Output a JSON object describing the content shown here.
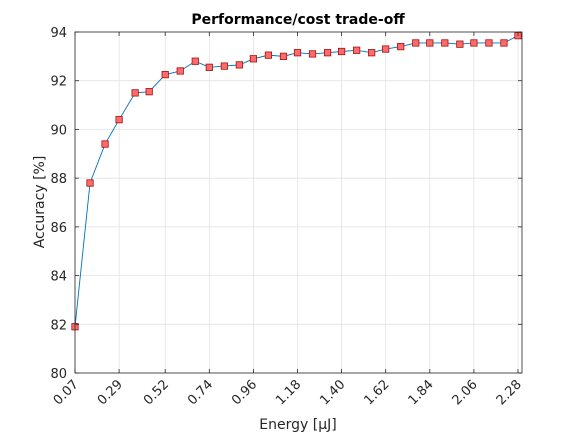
{
  "chart_data": {
    "type": "line",
    "title": "Performance/cost trade-off",
    "xlabel": "Energy [μJ]",
    "ylabel": "Accuracy [%]",
    "xlim": [
      0.07,
      2.3
    ],
    "ylim": [
      80,
      94
    ],
    "xticks": [
      0.07,
      0.29,
      0.52,
      0.74,
      0.96,
      1.18,
      1.4,
      1.62,
      1.84,
      2.06,
      2.28
    ],
    "xtick_labels": [
      "0.07",
      "0.29",
      "0.52",
      "0.74",
      "0.96",
      "1.18",
      "1.40",
      "1.62",
      "1.84",
      "2.06",
      "2.28"
    ],
    "yticks": [
      80,
      82,
      84,
      86,
      88,
      90,
      92,
      94
    ],
    "ytick_labels": [
      "80",
      "82",
      "84",
      "86",
      "88",
      "90",
      "92",
      "94"
    ],
    "grid": true,
    "line_color": "#0072bd",
    "marker_fill": "#ff6b6b",
    "marker_edge": "#a01010",
    "marker": "square",
    "series": [
      {
        "x": [
          0.07,
          0.145,
          0.22,
          0.29,
          0.37,
          0.44,
          0.52,
          0.595,
          0.67,
          0.74,
          0.815,
          0.89,
          0.96,
          1.035,
          1.11,
          1.18,
          1.255,
          1.33,
          1.4,
          1.475,
          1.55,
          1.62,
          1.695,
          1.77,
          1.84,
          1.915,
          1.99,
          2.06,
          2.135,
          2.21,
          2.28
        ],
        "y": [
          81.9,
          87.8,
          89.4,
          90.4,
          91.5,
          91.55,
          92.25,
          92.4,
          92.8,
          92.55,
          92.6,
          92.65,
          92.9,
          93.05,
          93.0,
          93.15,
          93.1,
          93.15,
          93.2,
          93.25,
          93.15,
          93.3,
          93.4,
          93.55,
          93.55,
          93.55,
          93.5,
          93.55,
          93.55,
          93.55,
          93.85
        ]
      }
    ]
  }
}
